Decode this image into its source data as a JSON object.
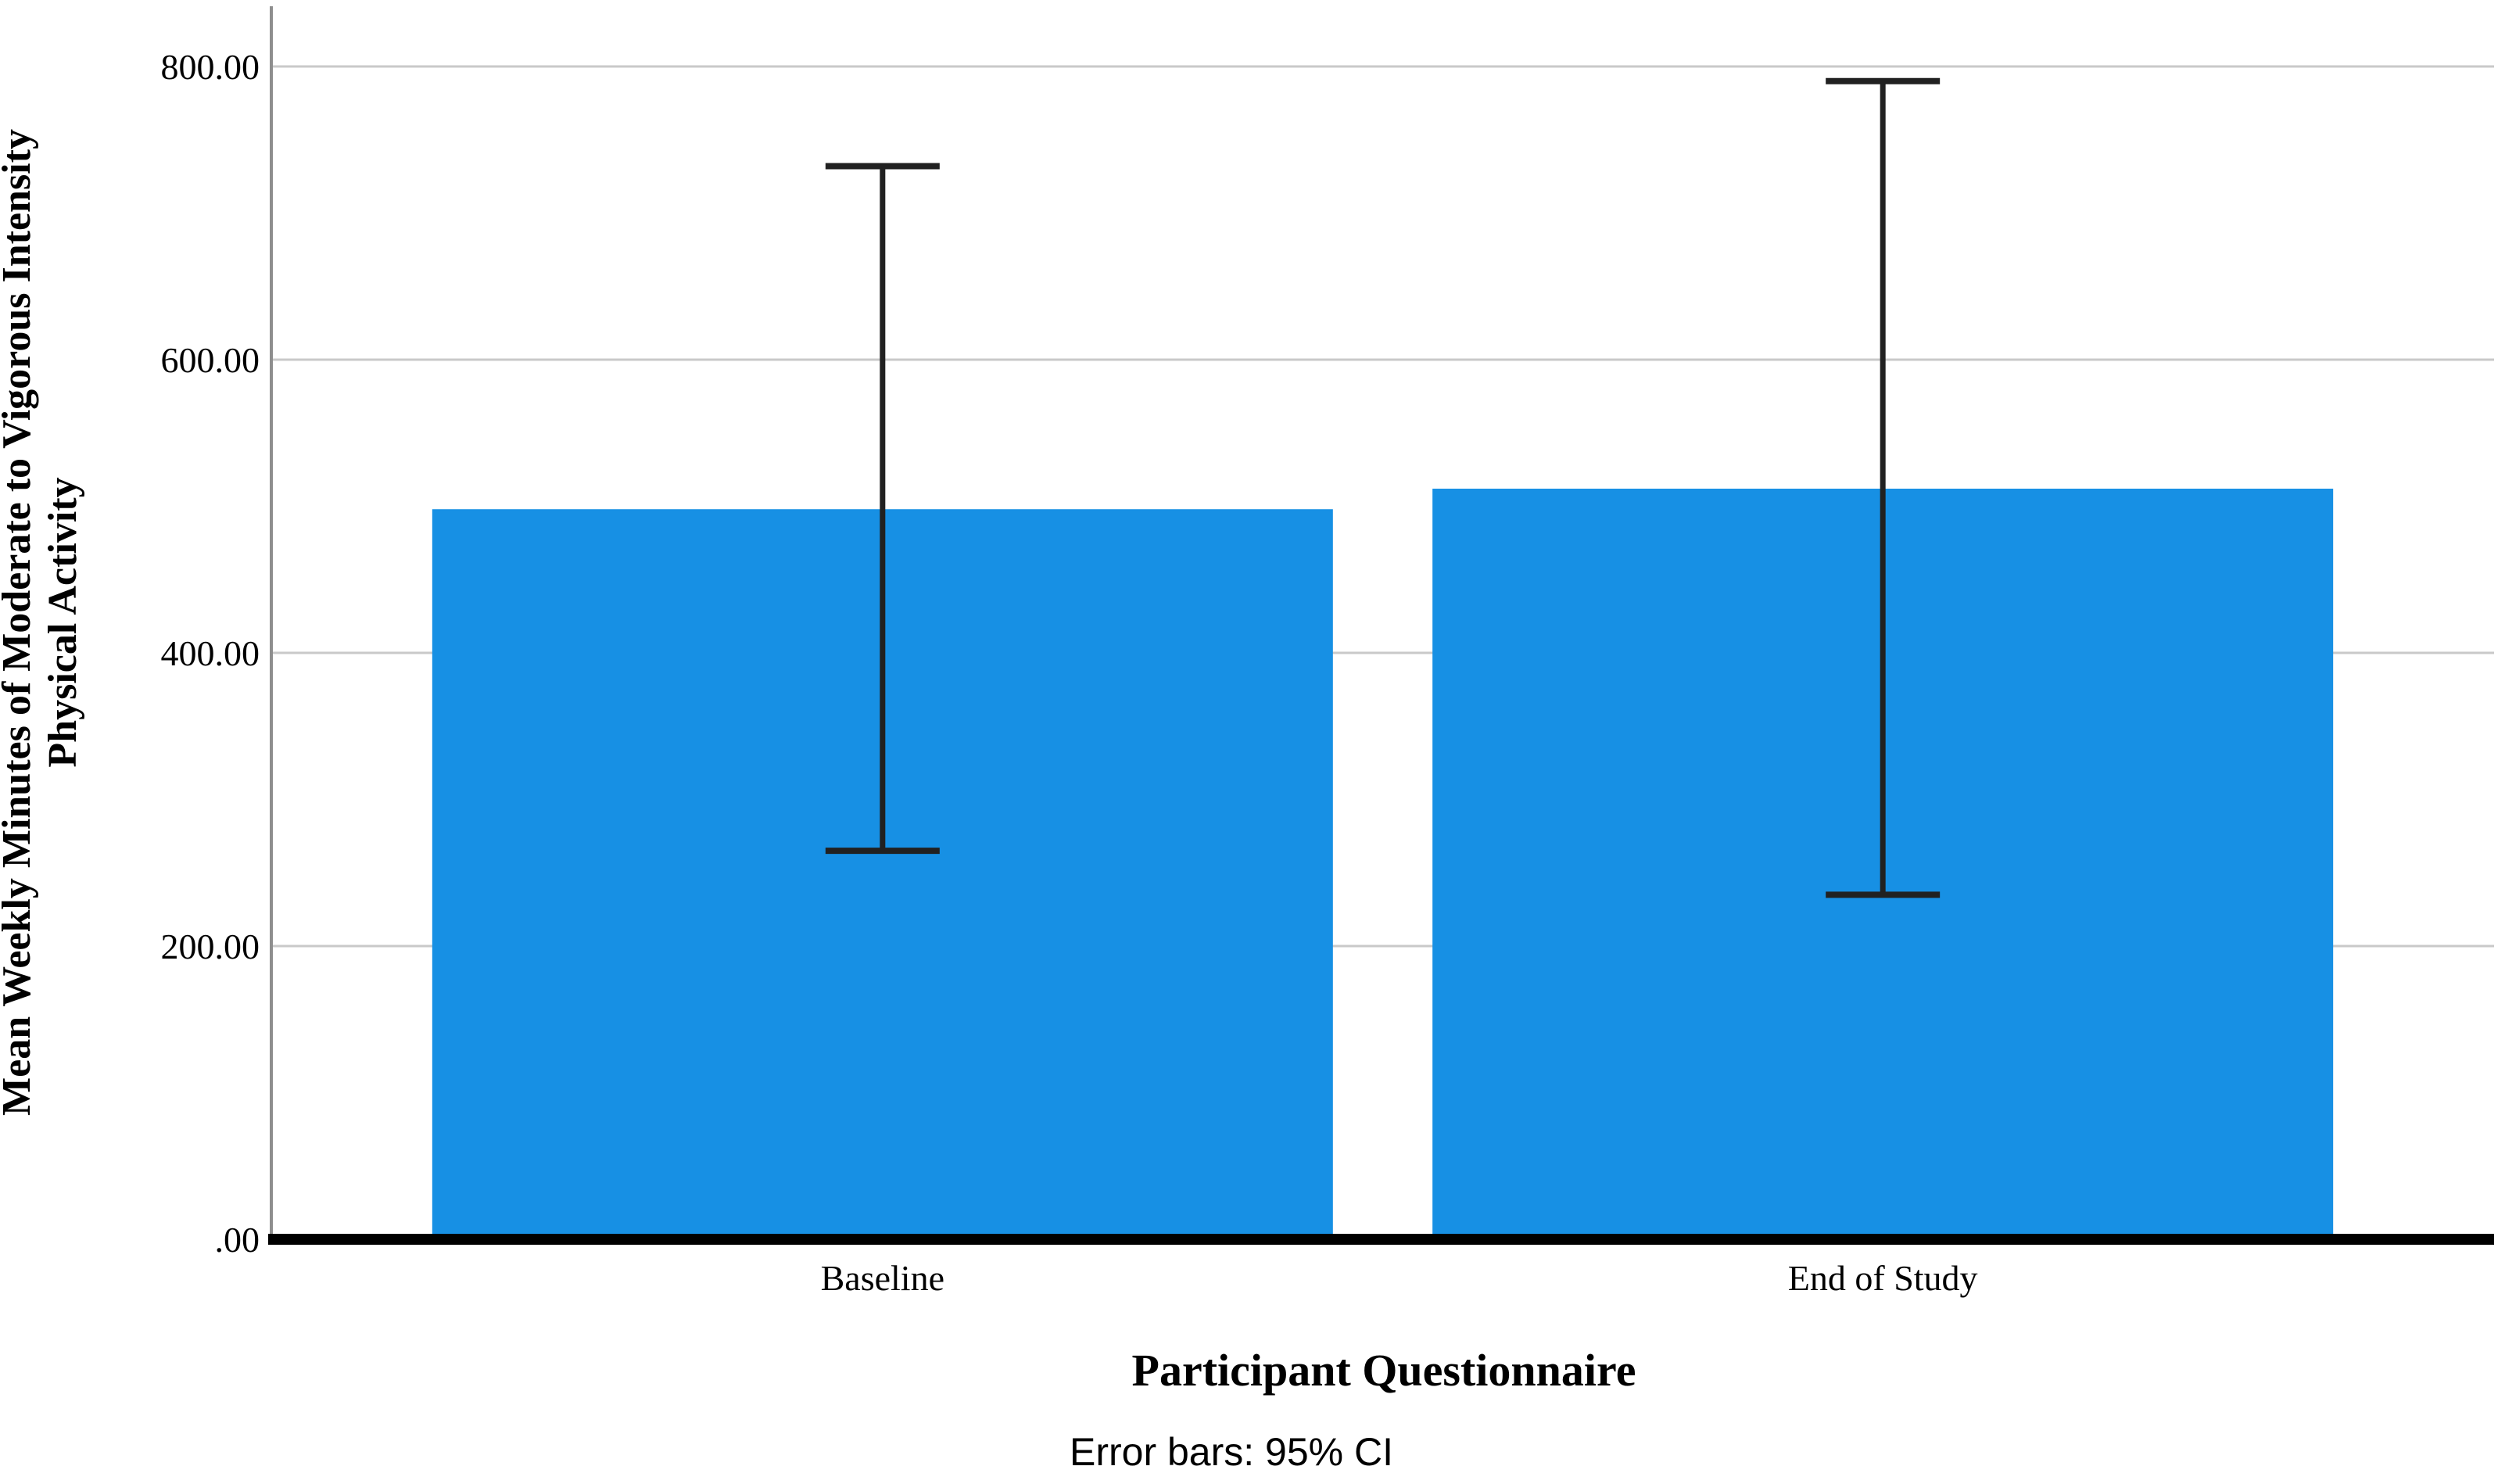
{
  "chart_data": {
    "type": "bar",
    "categories": [
      "Baseline",
      "End of Study"
    ],
    "values": [
      498,
      512
    ],
    "error_bars": {
      "kind": "95% CI",
      "low": [
        265,
        235
      ],
      "high": [
        732,
        790
      ]
    },
    "xlabel": "Participant Questionnaire",
    "ylabel": "Mean Weekly Minutes of Moderate to Vigorous Intensity Physical Activity",
    "ylabel_lines": [
      "Mean Weekly Minutes of Moderate to Vigorous Intensity",
      "Physical Activity"
    ],
    "yticks": {
      "values": [
        0,
        200,
        400,
        600,
        800
      ],
      "labels": [
        ".00",
        "200.00",
        "400.00",
        "600.00",
        "800.00"
      ]
    },
    "ylim": [
      0,
      841
    ],
    "grid": "horizontal",
    "legend": "none",
    "caption": "Error bars: 95% CI",
    "colors": {
      "bar": "#1790E4",
      "grid": "#C9C9C9",
      "axis": "#8E8E8E",
      "baseline": "#000000",
      "error_bar": "#212121",
      "text": "#000000"
    }
  }
}
